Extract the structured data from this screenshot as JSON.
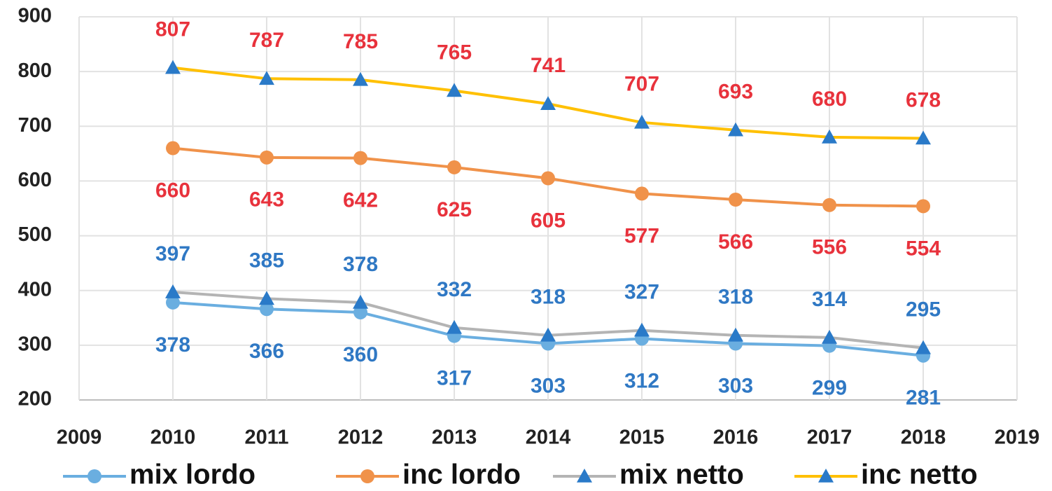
{
  "chart_data": {
    "type": "line",
    "x": [
      2010,
      2011,
      2012,
      2013,
      2014,
      2015,
      2016,
      2017,
      2018
    ],
    "xlim": [
      2009,
      2019
    ],
    "xticks": [
      2009,
      2010,
      2011,
      2012,
      2013,
      2014,
      2015,
      2016,
      2017,
      2018,
      2019
    ],
    "ylim": [
      200,
      900
    ],
    "yticks": [
      200,
      300,
      400,
      500,
      600,
      700,
      800,
      900
    ],
    "grid": true,
    "legend": "bottom",
    "series": [
      {
        "name": "mix lordo",
        "color": "#6aaee0",
        "marker": "circle",
        "marker_color": "#6aaee0",
        "label_color": "#2f78c4",
        "label_position": "below",
        "values": [
          378,
          366,
          360,
          317,
          303,
          312,
          303,
          299,
          281
        ]
      },
      {
        "name": "inc lordo",
        "color": "#f0924a",
        "marker": "circle",
        "marker_color": "#f0924a",
        "label_color": "#e8323c",
        "label_position": "below",
        "values": [
          660,
          643,
          642,
          625,
          605,
          577,
          566,
          556,
          554
        ]
      },
      {
        "name": "mix netto",
        "color": "#b4b4b4",
        "marker": "triangle",
        "marker_color": "#2a7ac8",
        "label_color": "#2f78c4",
        "label_position": "above",
        "values": [
          397,
          385,
          378,
          332,
          318,
          327,
          318,
          314,
          295
        ]
      },
      {
        "name": "inc netto",
        "color": "#ffc000",
        "marker": "triangle",
        "marker_color": "#2a7ac8",
        "label_color": "#e8323c",
        "label_position": "above",
        "values": [
          807,
          787,
          785,
          765,
          741,
          707,
          693,
          680,
          678
        ]
      }
    ]
  }
}
